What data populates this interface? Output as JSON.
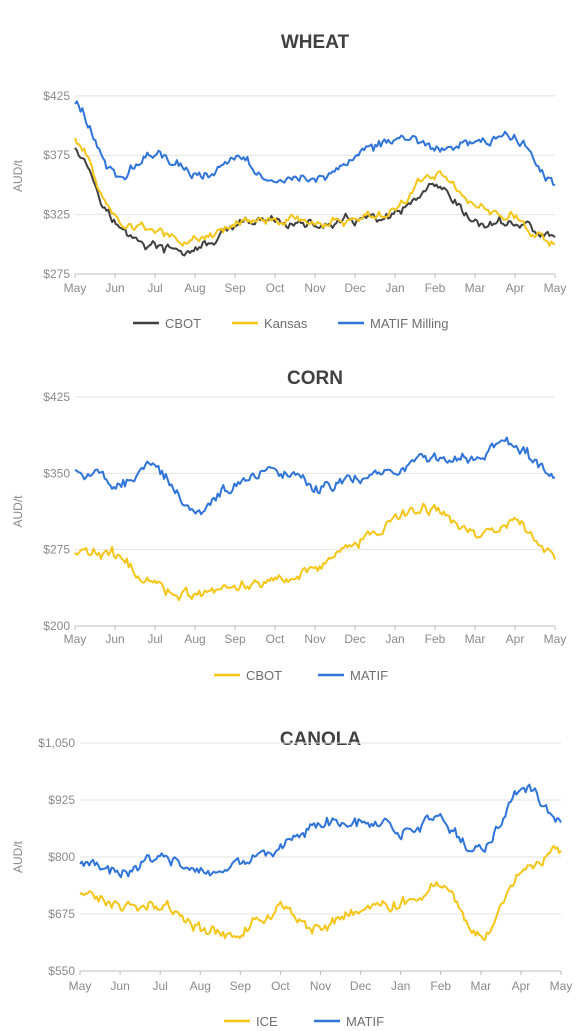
{
  "colors": {
    "black": "#404040",
    "yellow": "#f5c518",
    "blue": "#2f74d8"
  },
  "chart_data": [
    {
      "type": "line",
      "title": "WHEAT",
      "ylabel": "AUD/t",
      "ylim": [
        275,
        440
      ],
      "y_ticks": [
        275,
        325,
        375,
        425
      ],
      "y_tick_labels": [
        "$275",
        "$325",
        "$375",
        "$425"
      ],
      "grid": true,
      "legend": "bottom",
      "categories": [
        "May",
        "Jun",
        "Jul",
        "Aug",
        "Sep",
        "Oct",
        "Nov",
        "Dec",
        "Jan",
        "Feb",
        "Mar",
        "Apr",
        "May"
      ],
      "series": [
        {
          "name": "CBOT",
          "color": "#404040",
          "values": [
            384,
            318,
            298,
            295,
            313,
            320,
            315,
            320,
            323,
            345,
            318,
            318,
            305
          ]
        },
        {
          "name": "Kansas",
          "color": "#f5c518",
          "values": [
            390,
            323,
            312,
            302,
            318,
            322,
            318,
            322,
            330,
            360,
            333,
            322,
            300
          ]
        },
        {
          "name": "MATIF Milling",
          "color": "#2f74d8",
          "values": [
            420,
            360,
            375,
            360,
            370,
            358,
            355,
            372,
            388,
            382,
            385,
            390,
            350
          ]
        }
      ]
    },
    {
      "type": "line",
      "title": "CORN",
      "ylabel": "AUD/t",
      "ylim": [
        200,
        425
      ],
      "y_ticks": [
        200,
        275,
        350,
        425
      ],
      "y_tick_labels": [
        "$200",
        "$275",
        "$350",
        "$425"
      ],
      "grid": true,
      "legend": "bottom",
      "categories": [
        "May",
        "Jun",
        "Jul",
        "Aug",
        "Sep",
        "Oct",
        "Nov",
        "Dec",
        "Jan",
        "Feb",
        "Mar",
        "Apr",
        "May"
      ],
      "series": [
        {
          "name": "CBOT",
          "color": "#f5c518",
          "values": [
            272,
            268,
            240,
            230,
            238,
            245,
            258,
            280,
            305,
            315,
            290,
            300,
            268
          ]
        },
        {
          "name": "MATIF",
          "color": "#2f74d8",
          "values": [
            355,
            340,
            355,
            315,
            340,
            350,
            338,
            345,
            355,
            362,
            370,
            378,
            345
          ]
        }
      ]
    },
    {
      "type": "line",
      "title": "CANOLA",
      "ylabel": "AUD/t",
      "ylim": [
        550,
        1050
      ],
      "y_ticks": [
        550,
        675,
        800,
        925,
        1050
      ],
      "y_tick_labels": [
        "$550",
        "$675",
        "$800",
        "$925",
        "$1,050"
      ],
      "grid": true,
      "legend": "bottom",
      "categories": [
        "May",
        "Jun",
        "Jul",
        "Aug",
        "Sep",
        "Oct",
        "Nov",
        "Dec",
        "Jan",
        "Feb",
        "Mar",
        "Apr",
        "May"
      ],
      "series": [
        {
          "name": "ICE",
          "color": "#f5c518",
          "values": [
            720,
            690,
            700,
            640,
            640,
            680,
            650,
            690,
            700,
            740,
            630,
            760,
            810
          ]
        },
        {
          "name": "MATIF",
          "color": "#2f74d8",
          "values": [
            790,
            760,
            800,
            760,
            785,
            830,
            875,
            875,
            860,
            880,
            810,
            950,
            870
          ]
        }
      ]
    }
  ]
}
